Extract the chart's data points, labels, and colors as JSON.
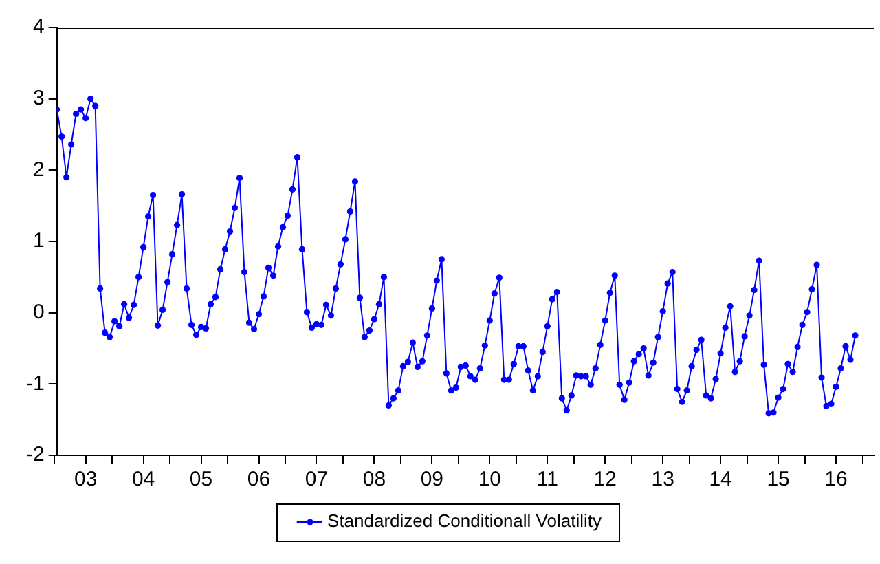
{
  "chart_data": {
    "type": "line",
    "xlim": [
      "2003-01",
      "2017-03"
    ],
    "ylim": [
      -2,
      4
    ],
    "yticks": [
      -2,
      -1,
      0,
      1,
      2,
      3,
      4
    ],
    "xticks": [
      {
        "value": "2003",
        "label": null
      },
      {
        "value": "2003-07",
        "label": "03"
      },
      {
        "value": "2004",
        "label": null
      },
      {
        "value": "2004-07",
        "label": "04"
      },
      {
        "value": "2005",
        "label": null
      },
      {
        "value": "2005-07",
        "label": "05"
      },
      {
        "value": "2006",
        "label": null
      },
      {
        "value": "2006-07",
        "label": "06"
      },
      {
        "value": "2007",
        "label": null
      },
      {
        "value": "2007-07",
        "label": "07"
      },
      {
        "value": "2008",
        "label": null
      },
      {
        "value": "2008-07",
        "label": "08"
      },
      {
        "value": "2009",
        "label": null
      },
      {
        "value": "2009-07",
        "label": "09"
      },
      {
        "value": "2010",
        "label": null
      },
      {
        "value": "2010-07",
        "label": "10"
      },
      {
        "value": "2011",
        "label": null
      },
      {
        "value": "2011-07",
        "label": "11"
      },
      {
        "value": "2012",
        "label": null
      },
      {
        "value": "2012-07",
        "label": "12"
      },
      {
        "value": "2013",
        "label": null
      },
      {
        "value": "2013-07",
        "label": "13"
      },
      {
        "value": "2014",
        "label": null
      },
      {
        "value": "2014-07",
        "label": "14"
      },
      {
        "value": "2015",
        "label": null
      },
      {
        "value": "2015-07",
        "label": "15"
      },
      {
        "value": "2016",
        "label": null
      },
      {
        "value": "2016-07",
        "label": "16"
      },
      {
        "value": "2017",
        "label": null
      }
    ],
    "grid": false,
    "legend": "bottom",
    "marker": "circle",
    "line_style": "solid",
    "x": [
      "2003-01",
      "2003-02",
      "2003-03",
      "2003-04",
      "2003-05",
      "2003-06",
      "2003-07",
      "2003-08",
      "2003-09",
      "2003-10",
      "2003-11",
      "2003-12",
      "2004-01",
      "2004-02",
      "2004-03",
      "2004-04",
      "2004-05",
      "2004-06",
      "2004-07",
      "2004-08",
      "2004-09",
      "2004-10",
      "2004-11",
      "2004-12",
      "2005-01",
      "2005-02",
      "2005-03",
      "2005-04",
      "2005-05",
      "2005-06",
      "2005-07",
      "2005-08",
      "2005-09",
      "2005-10",
      "2005-11",
      "2005-12",
      "2006-01",
      "2006-02",
      "2006-03",
      "2006-04",
      "2006-05",
      "2006-06",
      "2006-07",
      "2006-08",
      "2006-09",
      "2006-10",
      "2006-11",
      "2006-12",
      "2007-01",
      "2007-02",
      "2007-03",
      "2007-04",
      "2007-05",
      "2007-06",
      "2007-07",
      "2007-08",
      "2007-09",
      "2007-10",
      "2007-11",
      "2007-12",
      "2008-01",
      "2008-02",
      "2008-03",
      "2008-04",
      "2008-05",
      "2008-06",
      "2008-07",
      "2008-08",
      "2008-09",
      "2008-10",
      "2008-11",
      "2008-12",
      "2009-01",
      "2009-02",
      "2009-03",
      "2009-04",
      "2009-05",
      "2009-06",
      "2009-07",
      "2009-08",
      "2009-09",
      "2009-10",
      "2009-11",
      "2009-12",
      "2010-01",
      "2010-02",
      "2010-03",
      "2010-04",
      "2010-05",
      "2010-06",
      "2010-07",
      "2010-08",
      "2010-09",
      "2010-10",
      "2010-11",
      "2010-12",
      "2011-01",
      "2011-02",
      "2011-03",
      "2011-04",
      "2011-05",
      "2011-06",
      "2011-07",
      "2011-08",
      "2011-09",
      "2011-10",
      "2011-11",
      "2011-12",
      "2012-01",
      "2012-02",
      "2012-03",
      "2012-04",
      "2012-05",
      "2012-06",
      "2012-07",
      "2012-08",
      "2012-09",
      "2012-10",
      "2012-11",
      "2012-12",
      "2013-01",
      "2013-02",
      "2013-03",
      "2013-04",
      "2013-05",
      "2013-06",
      "2013-07",
      "2013-08",
      "2013-09",
      "2013-10",
      "2013-11",
      "2013-12",
      "2014-01",
      "2014-02",
      "2014-03",
      "2014-04",
      "2014-05",
      "2014-06",
      "2014-07",
      "2014-08",
      "2014-09",
      "2014-10",
      "2014-11",
      "2014-12",
      "2015-01",
      "2015-02",
      "2015-03",
      "2015-04",
      "2015-05",
      "2015-06",
      "2015-07",
      "2015-08",
      "2015-09",
      "2015-10",
      "2015-11",
      "2015-12",
      "2016-01",
      "2016-02",
      "2016-03",
      "2016-04",
      "2016-05",
      "2016-06",
      "2016-07",
      "2016-08",
      "2016-09",
      "2016-10",
      "2016-11"
    ],
    "series": [
      {
        "name": "Standardized Conditionall Volatility",
        "color": "#0000ff",
        "values": [
          2.85,
          2.47,
          1.9,
          2.36,
          2.79,
          2.85,
          2.73,
          3.0,
          2.9,
          0.34,
          -0.28,
          -0.34,
          -0.12,
          -0.19,
          0.12,
          -0.07,
          0.11,
          0.5,
          0.92,
          1.35,
          1.65,
          -0.18,
          0.04,
          0.43,
          0.82,
          1.23,
          1.66,
          0.34,
          -0.17,
          -0.31,
          -0.2,
          -0.22,
          0.12,
          0.22,
          0.61,
          0.89,
          1.14,
          1.47,
          1.89,
          0.57,
          -0.14,
          -0.23,
          -0.02,
          0.23,
          0.63,
          0.52,
          0.93,
          1.2,
          1.36,
          1.73,
          2.18,
          0.89,
          0.01,
          -0.21,
          -0.16,
          -0.17,
          0.11,
          -0.04,
          0.34,
          0.68,
          1.03,
          1.42,
          1.84,
          0.21,
          -0.34,
          -0.25,
          -0.09,
          0.12,
          0.5,
          -1.3,
          -1.2,
          -1.09,
          -0.75,
          -0.69,
          -0.42,
          -0.76,
          -0.68,
          -0.32,
          0.06,
          0.45,
          0.75,
          -0.85,
          -1.09,
          -1.05,
          -0.76,
          -0.74,
          -0.89,
          -0.94,
          -0.78,
          -0.46,
          -0.11,
          0.27,
          0.49,
          -0.94,
          -0.94,
          -0.72,
          -0.47,
          -0.47,
          -0.81,
          -1.09,
          -0.89,
          -0.55,
          -0.19,
          0.19,
          0.29,
          -1.2,
          -1.37,
          -1.16,
          -0.88,
          -0.89,
          -0.89,
          -1.01,
          -0.78,
          -0.45,
          -0.11,
          0.28,
          0.52,
          -1.01,
          -1.22,
          -0.98,
          -0.68,
          -0.58,
          -0.5,
          -0.88,
          -0.7,
          -0.34,
          0.02,
          0.41,
          0.57,
          -1.07,
          -1.25,
          -1.09,
          -0.75,
          -0.52,
          -0.38,
          -1.16,
          -1.2,
          -0.93,
          -0.57,
          -0.21,
          0.09,
          -0.83,
          -0.68,
          -0.33,
          -0.04,
          0.32,
          0.73,
          -0.73,
          -1.41,
          -1.4,
          -1.19,
          -1.07,
          -0.72,
          -0.83,
          -0.48,
          -0.17,
          0.01,
          0.33,
          0.67,
          -0.91,
          -1.31,
          -1.28,
          -1.04,
          -0.78,
          -0.47,
          -0.66,
          -0.32
        ]
      }
    ]
  }
}
